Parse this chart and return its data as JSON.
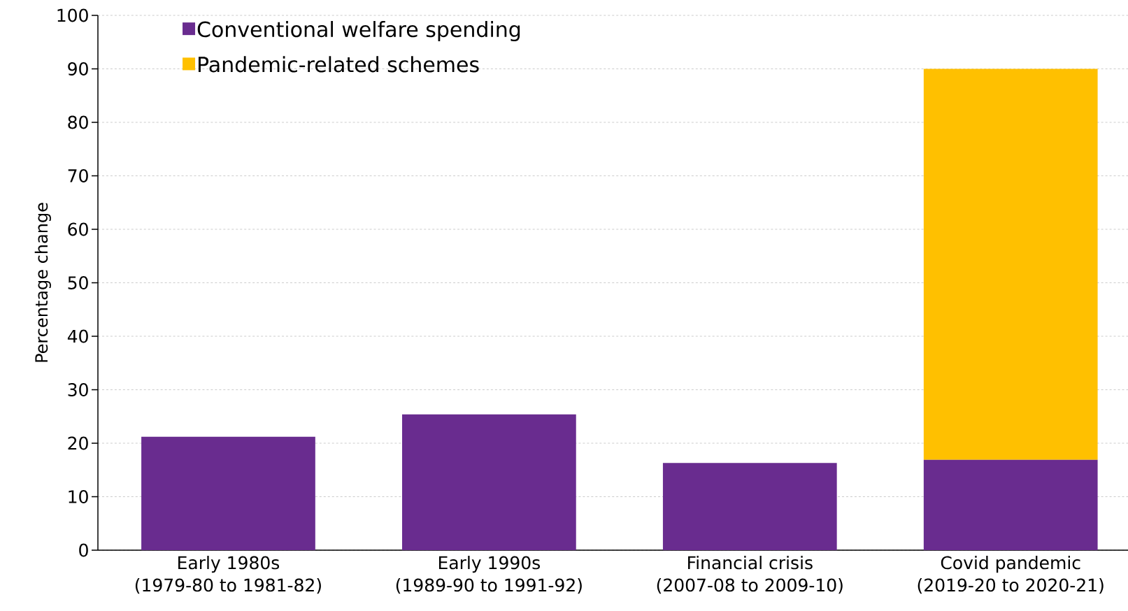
{
  "chart_data": {
    "type": "bar",
    "stacked": true,
    "ylabel": "Percentage change",
    "categories": [
      "Early 1980s\n(1979-80 to 1981-82)",
      "Early 1990s\n(1989-90 to 1991-92)",
      "Financial crisis\n(2007-08 to 2009-10)",
      "Covid pandemic\n(2019-20 to 2020-21)"
    ],
    "series": [
      {
        "name": "Conventional welfare spending",
        "color": "#692c8f",
        "values": [
          21.2,
          25.4,
          16.3,
          16.9
        ]
      },
      {
        "name": "Pandemic-related schemes",
        "color": "#ffc000",
        "values": [
          0,
          0,
          0,
          73.1
        ]
      }
    ],
    "ylim": [
      0,
      100
    ],
    "yticks": [
      0,
      10,
      20,
      30,
      40,
      50,
      60,
      70,
      80,
      90,
      100
    ],
    "grid": "y",
    "legend": "top left"
  }
}
